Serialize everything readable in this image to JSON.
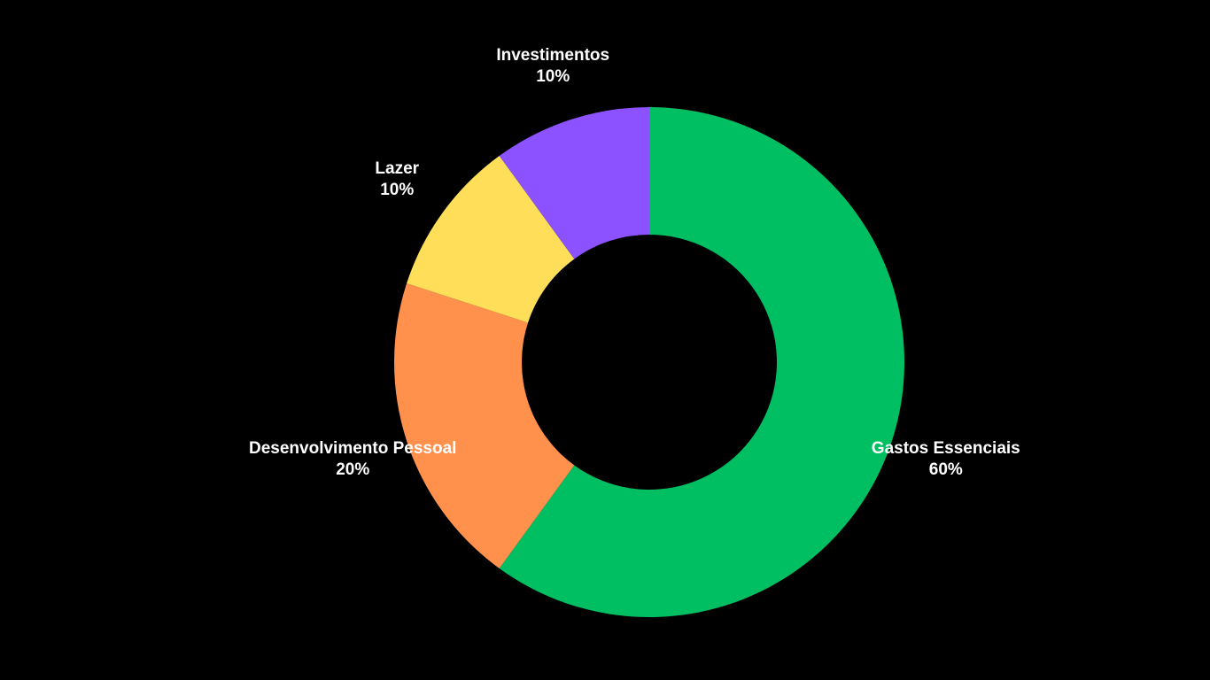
{
  "chart_data": {
    "type": "pie",
    "variant": "donut",
    "title": "",
    "background": "#000000",
    "label_color": "#ffffff",
    "slices": [
      {
        "label": "Gastos Essenciais",
        "value": 60,
        "value_label": "60%",
        "color": "#00BF63"
      },
      {
        "label": "Desenvolvimento Pessoal",
        "value": 20,
        "value_label": "20%",
        "color": "#FF914D"
      },
      {
        "label": "Lazer",
        "value": 10,
        "value_label": "10%",
        "color": "#FFDE59"
      },
      {
        "label": "Investimentos",
        "value": 10,
        "value_label": "10%",
        "color": "#8C52FF"
      }
    ]
  }
}
